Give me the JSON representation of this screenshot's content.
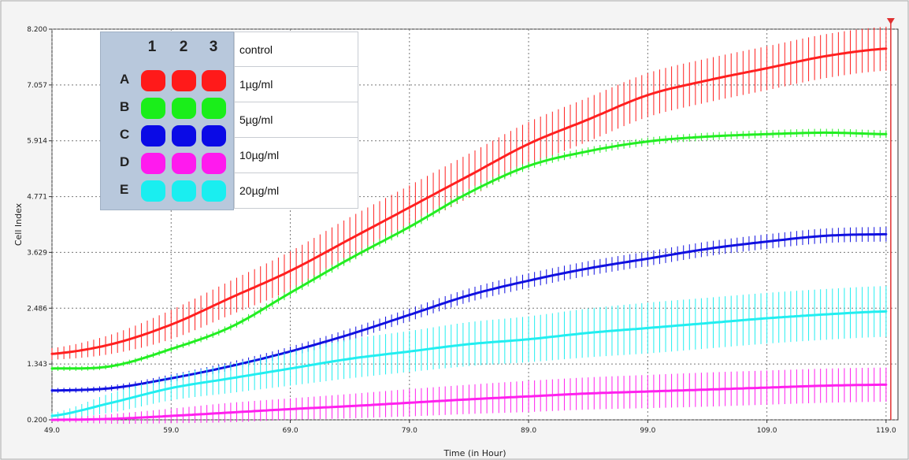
{
  "chart_data": {
    "type": "line",
    "xlabel": "Time (in Hour)",
    "ylabel": "Cell Index",
    "xlim": [
      49,
      120
    ],
    "ylim": [
      0.2,
      8.2
    ],
    "x_ticks": [
      "49.0",
      "59.0",
      "69.0",
      "79.0",
      "89.0",
      "99.0",
      "109.0",
      "119.0"
    ],
    "y_ticks": [
      "0.200",
      "1.343",
      "2.486",
      "3.629",
      "4.771",
      "5.914",
      "7.057",
      "8.200"
    ],
    "grid": true,
    "marker_line_x": 119.0,
    "x": [
      49,
      54,
      59,
      64,
      69,
      74,
      79,
      84,
      89,
      94,
      99,
      104,
      109,
      114,
      119
    ],
    "series": [
      {
        "name": "control",
        "color": "#ff2020",
        "values": [
          1.55,
          1.75,
          2.15,
          2.7,
          3.25,
          3.9,
          4.55,
          5.2,
          5.85,
          6.35,
          6.85,
          7.15,
          7.4,
          7.65,
          7.8
        ],
        "error": [
          0.12,
          0.2,
          0.3,
          0.35,
          0.4,
          0.45,
          0.45,
          0.45,
          0.45,
          0.45,
          0.45,
          0.45,
          0.45,
          0.45,
          0.45
        ]
      },
      {
        "name": "1µg/ml",
        "color": "#22ee22",
        "values": [
          1.25,
          1.3,
          1.65,
          2.1,
          2.8,
          3.5,
          4.15,
          4.85,
          5.4,
          5.7,
          5.9,
          6.0,
          6.05,
          6.08,
          6.05
        ],
        "error": [
          0.05,
          0.05,
          0.06,
          0.07,
          0.08,
          0.08,
          0.08,
          0.08,
          0.08,
          0.08,
          0.08,
          0.08,
          0.08,
          0.08,
          0.08
        ]
      },
      {
        "name": "5µg/ml",
        "color": "#1010e0",
        "values": [
          0.8,
          0.85,
          1.05,
          1.3,
          1.6,
          1.95,
          2.35,
          2.75,
          3.05,
          3.3,
          3.5,
          3.7,
          3.85,
          3.97,
          4.0
        ],
        "error": [
          0.05,
          0.06,
          0.08,
          0.09,
          0.1,
          0.12,
          0.13,
          0.14,
          0.15,
          0.15,
          0.15,
          0.15,
          0.15,
          0.15,
          0.15
        ]
      },
      {
        "name": "10µg/ml",
        "color": "#ff20ee",
        "values": [
          0.2,
          0.22,
          0.28,
          0.35,
          0.42,
          0.48,
          0.55,
          0.62,
          0.68,
          0.74,
          0.78,
          0.82,
          0.86,
          0.9,
          0.92
        ],
        "error": [
          0.04,
          0.1,
          0.15,
          0.2,
          0.22,
          0.25,
          0.28,
          0.3,
          0.32,
          0.33,
          0.34,
          0.35,
          0.35,
          0.35,
          0.35
        ]
      },
      {
        "name": "20µg/ml",
        "color": "#22eef0",
        "values": [
          0.28,
          0.55,
          0.85,
          1.05,
          1.25,
          1.45,
          1.6,
          1.75,
          1.85,
          1.98,
          2.08,
          2.18,
          2.28,
          2.36,
          2.42
        ],
        "error": [
          0.06,
          0.2,
          0.25,
          0.3,
          0.35,
          0.4,
          0.42,
          0.45,
          0.47,
          0.5,
          0.52,
          0.52,
          0.52,
          0.52,
          0.52
        ]
      }
    ]
  },
  "legend": {
    "columns": [
      "1",
      "2",
      "3"
    ],
    "rows": [
      "A",
      "B",
      "C",
      "D",
      "E"
    ],
    "labels": [
      "control",
      "1µg/ml",
      "5µg/ml",
      "10µg/ml",
      "20µg/ml"
    ],
    "well_colors": [
      "#ff1a1a",
      "#1aee1a",
      "#0a0ae6",
      "#ff1aee",
      "#1aeef0"
    ]
  }
}
